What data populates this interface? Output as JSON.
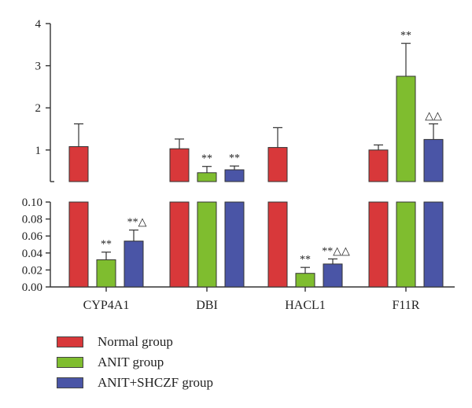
{
  "chart_data": {
    "type": "bar",
    "categories": [
      "CYP4A1",
      "DBI",
      "HACL1",
      "F11R"
    ],
    "series": [
      {
        "name": "Normal group",
        "color": "#d8383a",
        "values": [
          1.08,
          1.03,
          1.06,
          1.0
        ],
        "errors": [
          0.54,
          0.23,
          0.47,
          0.12
        ]
      },
      {
        "name": "ANIT group",
        "color": "#7fbd2f",
        "values": [
          0.032,
          0.46,
          0.016,
          2.75
        ],
        "errors": [
          0.009,
          0.15,
          0.007,
          0.78
        ]
      },
      {
        "name": "ANIT+SHCZF group",
        "color": "#4a55a6",
        "values": [
          0.054,
          0.53,
          0.027,
          1.25
        ],
        "errors": [
          0.013,
          0.09,
          0.006,
          0.37
        ]
      }
    ],
    "annotations": [
      [
        "",
        "",
        "",
        ""
      ],
      [
        "**",
        "**",
        "**",
        "**"
      ],
      [
        "**△",
        "**",
        "**△△",
        "△△"
      ]
    ],
    "axis_break": true,
    "upper_axis": {
      "ylim": [
        0.25,
        4
      ],
      "ticks": [
        "1",
        "2",
        "3",
        "4"
      ],
      "tick_values": [
        1,
        2,
        3,
        4
      ]
    },
    "lower_axis": {
      "ylim": [
        0,
        0.1
      ],
      "ticks": [
        "0.00",
        "0.02",
        "0.04",
        "0.06",
        "0.08",
        "0.10"
      ],
      "tick_values": [
        0,
        0.02,
        0.04,
        0.06,
        0.08,
        0.1
      ]
    },
    "title": "",
    "xlabel": "",
    "ylabel": "",
    "legend_position": "bottom-left",
    "grid": false
  }
}
